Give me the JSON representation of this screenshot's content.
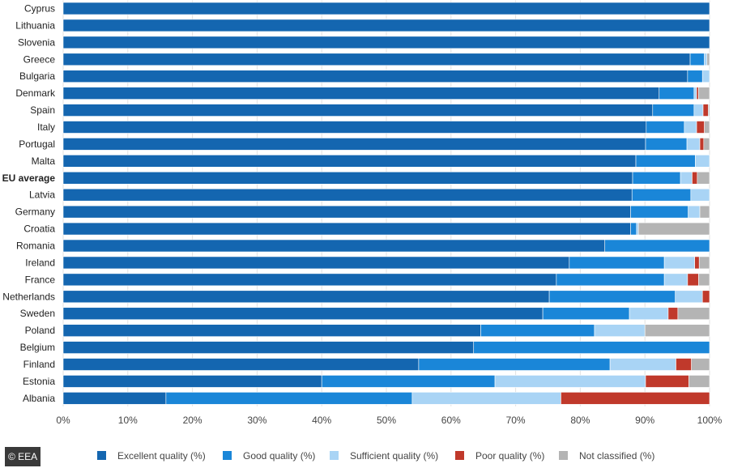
{
  "credit": "© EEA",
  "chart_data": {
    "type": "bar",
    "orientation": "horizontal",
    "stacked": true,
    "title": "",
    "xlabel": "",
    "ylabel": "",
    "xlim": [
      0,
      100
    ],
    "x_ticks": [
      "0%",
      "10%",
      "20%",
      "30%",
      "40%",
      "50%",
      "60%",
      "70%",
      "80%",
      "90%",
      "100%"
    ],
    "grid": true,
    "legend_position": "bottom",
    "categories": [
      "Cyprus",
      "Lithuania",
      "Slovenia",
      "Greece",
      "Bulgaria",
      "Denmark",
      "Spain",
      "Italy",
      "Portugal",
      "Malta",
      "EU average",
      "Latvia",
      "Germany",
      "Croatia",
      "Romania",
      "Ireland",
      "France",
      "Netherlands",
      "Sweden",
      "Poland",
      "Belgium",
      "Finland",
      "Estonia",
      "Albania"
    ],
    "bold_categories": [
      "EU average"
    ],
    "series": [
      {
        "name": "Excellent quality (%)",
        "color": "#1466b0",
        "values": [
          100,
          100,
          100,
          97,
          96.6,
          92.2,
          91.2,
          90.2,
          90.1,
          88.6,
          88.1,
          88.0,
          87.8,
          87.8,
          83.8,
          78.3,
          76.3,
          75.2,
          74.2,
          64.6,
          63.5,
          55.0,
          40.0,
          15.9
        ]
      },
      {
        "name": "Good quality (%)",
        "color": "#1a86d8",
        "values": [
          0,
          0,
          0,
          2.2,
          2.3,
          5.4,
          6.4,
          5.9,
          6.4,
          9.2,
          7.4,
          9.1,
          8.9,
          0.9,
          16.2,
          14.7,
          16.7,
          19.5,
          13.4,
          17.6,
          36.5,
          29.6,
          26.8,
          38.1
        ]
      },
      {
        "name": "Sufficient quality (%)",
        "color": "#a9d4f5",
        "values": [
          0,
          0,
          0,
          0.4,
          1.1,
          0.4,
          1.4,
          1.9,
          2.0,
          2.2,
          1.8,
          2.9,
          1.8,
          0.3,
          0,
          4.7,
          3.6,
          4.2,
          6.0,
          7.8,
          0,
          10.2,
          23.3,
          23.0
        ]
      },
      {
        "name": "Poor quality (%)",
        "color": "#c0392b",
        "values": [
          0,
          0,
          0,
          0,
          0,
          0.3,
          0.8,
          1.2,
          0.6,
          0,
          0.8,
          0,
          0,
          0,
          0,
          0.7,
          1.7,
          1.1,
          1.5,
          0,
          0,
          2.4,
          6.7,
          23.0
        ]
      },
      {
        "name": "Not classified (%)",
        "color": "#b4b4b4",
        "values": [
          0,
          0,
          0,
          0.4,
          0,
          1.7,
          0.2,
          0.8,
          0.9,
          0,
          1.9,
          0,
          1.5,
          11.0,
          0,
          1.6,
          1.7,
          0,
          4.9,
          10.0,
          0,
          2.8,
          3.2,
          0
        ]
      }
    ]
  }
}
